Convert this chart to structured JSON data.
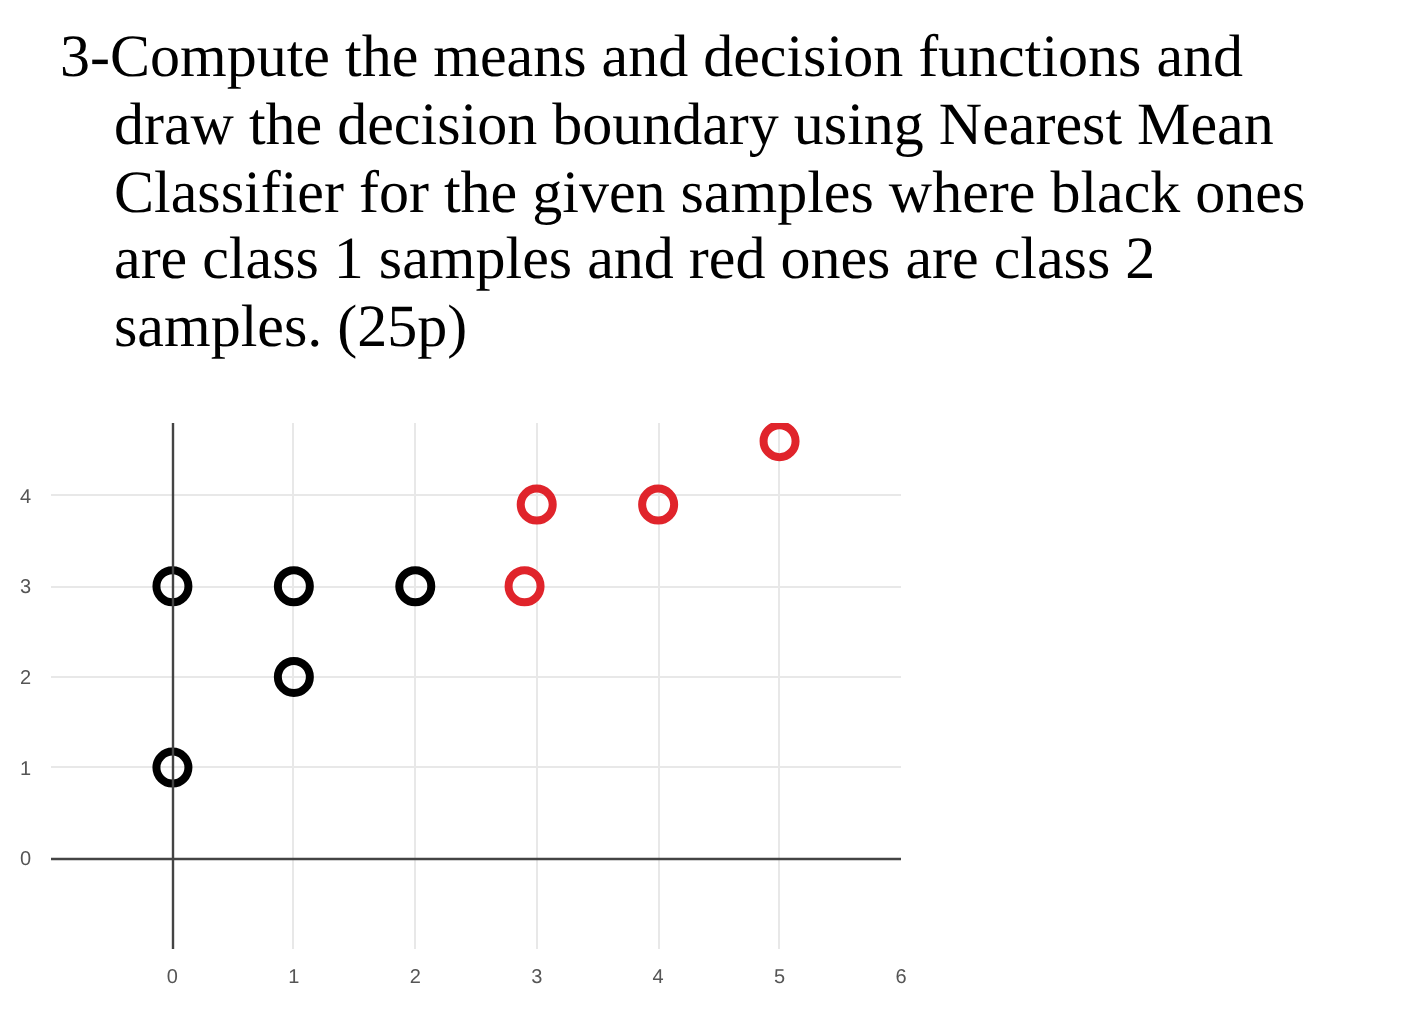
{
  "chart_data": {
    "type": "scatter",
    "title": "3-Compute the means and decision functions and\ndraw the decision boundary using Nearest Mean\nClassifier for the given samples where black ones\nare class 1 samples and red ones are class 2\nsamples. (25p)",
    "series": [
      {
        "color": "#000000",
        "x": [
          0,
          1,
          2,
          1,
          0
        ],
        "values": [
          3,
          3,
          3,
          2,
          1
        ]
      },
      {
        "color": "#e0242b",
        "x": [
          3,
          4,
          5,
          2.9
        ],
        "values": [
          3.9,
          3.9,
          4.6,
          3
        ]
      }
    ],
    "xlim": [
      -1,
      6
    ],
    "ylim": [
      -1,
      4.8
    ],
    "xticks": [
      0,
      1,
      2,
      3,
      4,
      5,
      6
    ],
    "yticks": [
      0,
      1,
      2,
      3,
      4
    ],
    "grid": true,
    "marker": "circle"
  }
}
